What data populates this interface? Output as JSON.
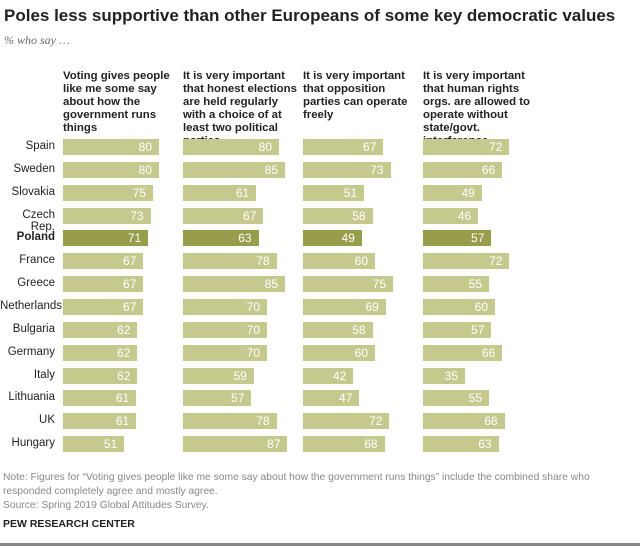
{
  "title": "Poles less supportive than other Europeans of some key democratic values",
  "subtitle": "% who say …",
  "note": "Note: Figures for “Voting gives people like me some say about how the government runs things” include the combined share who responded completely agree and mostly agree.",
  "source": "Source: Spring 2019 Global Attitudes Survey.",
  "brand": "PEW RESEARCH CENTER",
  "colors": {
    "bar": "#c5c98e",
    "highlight": "#979d4a",
    "label": "#ffffff"
  },
  "chart_data": {
    "type": "bar",
    "orientation": "horizontal",
    "highlight": "Poland",
    "categories": [
      "Spain",
      "Sweden",
      "Slovakia",
      "Czech Rep.",
      "Poland",
      "France",
      "Greece",
      "Netherlands",
      "Bulgaria",
      "Germany",
      "Italy",
      "Lithuania",
      "UK",
      "Hungary"
    ],
    "series": [
      {
        "name": "Voting gives people like me some say about how the government runs things",
        "values": [
          80,
          80,
          75,
          73,
          71,
          67,
          67,
          67,
          62,
          62,
          62,
          61,
          61,
          51
        ]
      },
      {
        "name": "It is very important that honest elections are held regularly with a choice of at least two political parties",
        "values": [
          80,
          85,
          61,
          67,
          63,
          78,
          85,
          70,
          70,
          70,
          59,
          57,
          78,
          87
        ]
      },
      {
        "name": "It is very important that opposition parties can operate freely",
        "values": [
          67,
          73,
          51,
          58,
          49,
          60,
          75,
          69,
          58,
          60,
          42,
          47,
          72,
          68
        ]
      },
      {
        "name": "It is very important that human rights orgs. are allowed to operate without state/govt. interference",
        "values": [
          72,
          66,
          49,
          46,
          57,
          72,
          55,
          60,
          57,
          66,
          35,
          55,
          68,
          63
        ]
      }
    ]
  }
}
